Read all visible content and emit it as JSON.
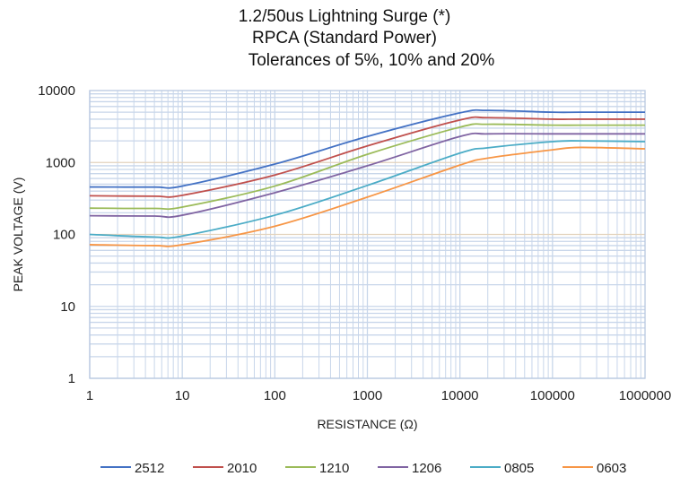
{
  "chart_data": {
    "type": "line",
    "title_lines": [
      "1.2/50us Lightning Surge (*)",
      "RPCA (Standard Power)",
      "Tolerances of 5%, 10% and 20%"
    ],
    "xlabel": "RESISTANCE (Ω)",
    "ylabel": "PEAK VOLTAGE (V)",
    "x_scale": "log",
    "y_scale": "log",
    "xlim": [
      1,
      1000000
    ],
    "ylim": [
      1,
      10000
    ],
    "x_ticks": [
      "1",
      "10",
      "100",
      "1000",
      "10000",
      "100000",
      "1000000"
    ],
    "y_ticks": [
      "1",
      "10",
      "100",
      "1000",
      "10000"
    ],
    "grid": true,
    "legend_position": "bottom",
    "x": [
      1,
      5,
      10,
      100,
      1000,
      10000,
      20000,
      100000,
      200000,
      1000000
    ],
    "series": [
      {
        "name": "2512",
        "color": "#4472C4",
        "values": [
          457,
          455,
          470,
          950,
          2300,
          4900,
          5300,
          5000,
          5000,
          5000
        ]
      },
      {
        "name": "2010",
        "color": "#C0504D",
        "values": [
          345,
          340,
          350,
          670,
          1700,
          3900,
          4200,
          4000,
          4000,
          4000
        ]
      },
      {
        "name": "1210",
        "color": "#9BBB59",
        "values": [
          232,
          230,
          240,
          470,
          1300,
          3100,
          3400,
          3300,
          3300,
          3300
        ]
      },
      {
        "name": "1206",
        "color": "#8064A2",
        "values": [
          182,
          180,
          185,
          380,
          900,
          2300,
          2500,
          2500,
          2500,
          2500
        ]
      },
      {
        "name": "0805",
        "color": "#4BACC6",
        "values": [
          100,
          92,
          95,
          185,
          480,
          1350,
          1600,
          1950,
          2000,
          1950
        ]
      },
      {
        "name": "0603",
        "color": "#F79646",
        "values": [
          72,
          70,
          72,
          130,
          330,
          920,
          1150,
          1500,
          1620,
          1550
        ]
      }
    ]
  }
}
